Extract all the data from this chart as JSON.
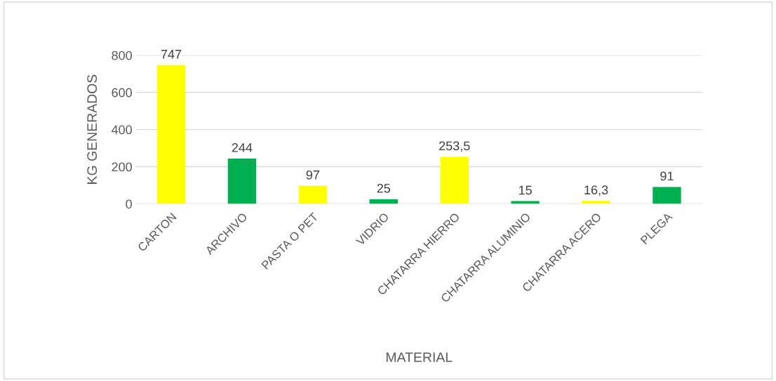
{
  "chart_data": {
    "type": "bar",
    "xlabel": "MATERIAL",
    "ylabel": "KG GENERADOS",
    "categories": [
      "CARTON",
      "ARCHIVO",
      "PASTA O PET",
      "VIDRIO",
      "CHATARRA HIERRO",
      "CHATARRA ALUMINIO",
      "CHATARRA ACERO",
      "PLEGA"
    ],
    "values": [
      747,
      244,
      97,
      25,
      253.5,
      15,
      16.3,
      91
    ],
    "value_labels": [
      "747",
      "244",
      "97",
      "25",
      "253,5",
      "15",
      "16,3",
      "91"
    ],
    "colors": [
      "#ffff00",
      "#00b050",
      "#ffff00",
      "#00b050",
      "#ffff00",
      "#00b050",
      "#ffff00",
      "#00b050"
    ],
    "ylim": [
      0,
      800
    ],
    "yticks": [
      0,
      200,
      400,
      600,
      800
    ],
    "grid": "y"
  }
}
